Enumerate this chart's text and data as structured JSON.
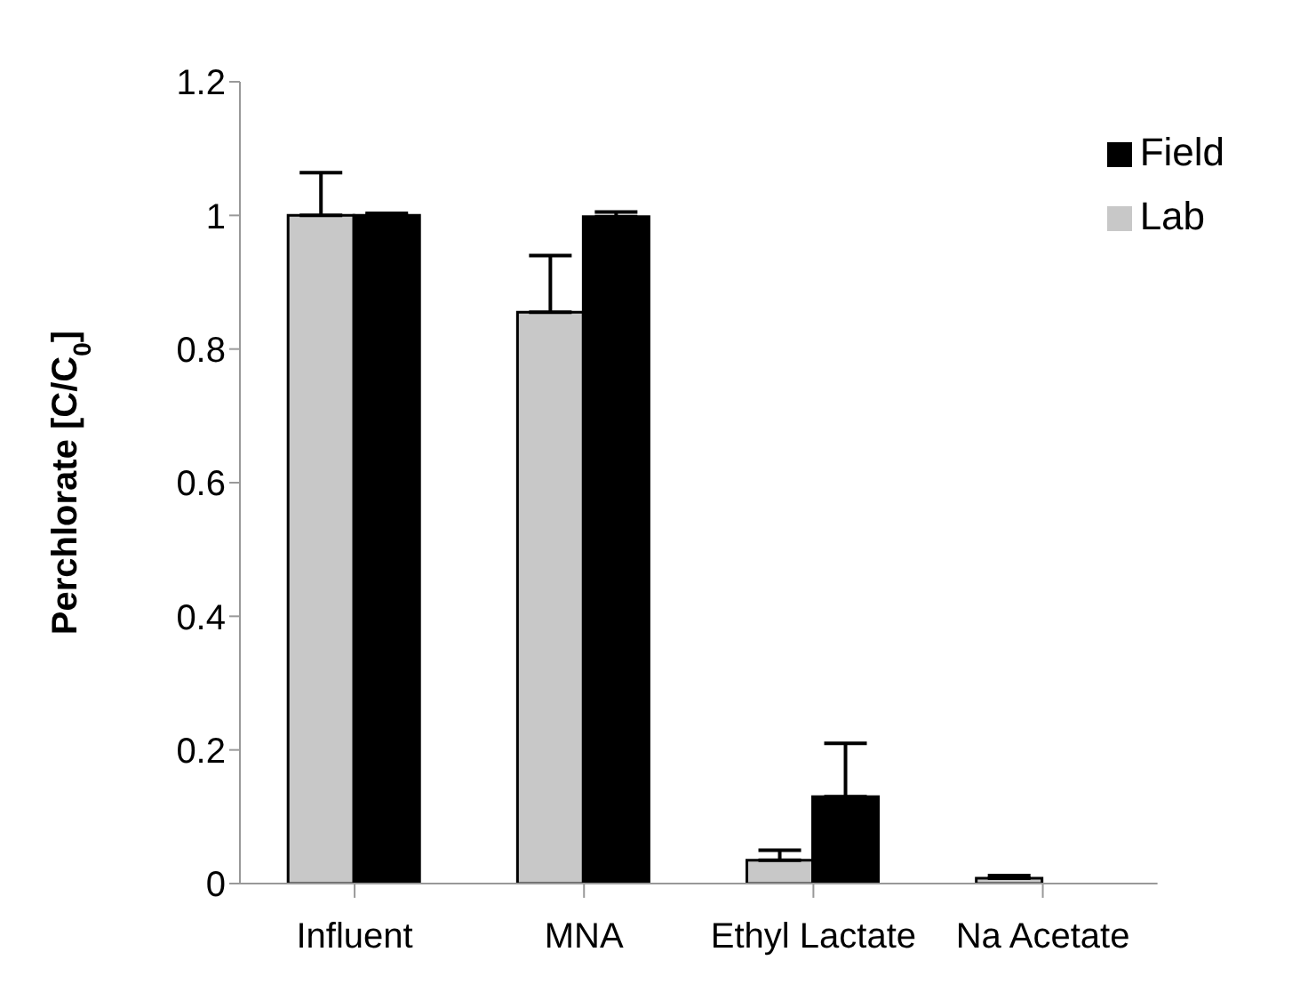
{
  "chart_data": {
    "type": "bar",
    "ylabel": "Perchlorate [C/C$_{0}$]",
    "categories": [
      "Influent",
      "MNA",
      "Ethyl Lactate",
      "Na Acetate"
    ],
    "series": [
      {
        "name": "Lab",
        "color": "#c8c8c8",
        "values": [
          1.0,
          0.855,
          0.035,
          0.008
        ],
        "errors": [
          [
            1.0,
            1.064
          ],
          [
            0.855,
            0.94
          ],
          [
            0.035,
            0.05
          ],
          [
            0.008,
            0.012
          ]
        ]
      },
      {
        "name": "Field",
        "color": "#000000",
        "values": [
          1.0,
          0.998,
          0.13,
          0
        ],
        "errors": [
          [
            1.0,
            1.003
          ],
          [
            0.998,
            1.005
          ],
          [
            0.13,
            0.21
          ],
          null
        ]
      }
    ],
    "ylim": [
      0,
      1.2
    ],
    "yticks": [
      0,
      0.2,
      0.4,
      0.6,
      0.8,
      1,
      1.2
    ],
    "grid": false,
    "legend": "top right"
  }
}
